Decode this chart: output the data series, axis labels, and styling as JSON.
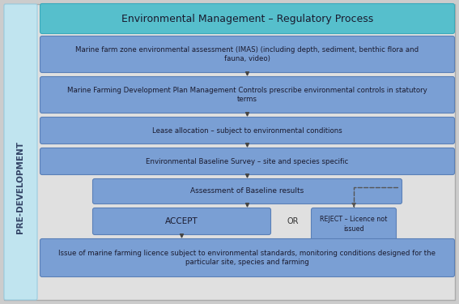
{
  "title": "Environmental Management – Regulatory Process",
  "title_bg": "#56bfcc",
  "title_text_color": "#2d3050",
  "box_bg": "#7a9fd4",
  "box_border": "#5a80b8",
  "box_text_color": "#1a1a2e",
  "sidebar_bg": "#c0e4ef",
  "sidebar_text": "PRE-DEVELOPMENT",
  "outer_bg": "#cccccc",
  "inner_bg": "#e0e0e0",
  "boxes": [
    "Marine farm zone environmental assessment (IMAS) (including depth, sediment, benthic flora and\nfauna, video)",
    "Marine Farming Development Plan Management Controls prescribe environmental controls in statutory\nterms",
    "Lease allocation – subject to environmental conditions",
    "Environmental Baseline Survey – site and species specific",
    "Assessment of Baseline results"
  ],
  "accept_text": "ACCEPT",
  "reject_text": "REJECT – Licence not\nissued",
  "or_text": "OR",
  "final_box_text": "Issue of marine farming licence subject to environmental standards, monitoring conditions designed for the\nparticular site, species and farming",
  "arrow_color": "#444444"
}
